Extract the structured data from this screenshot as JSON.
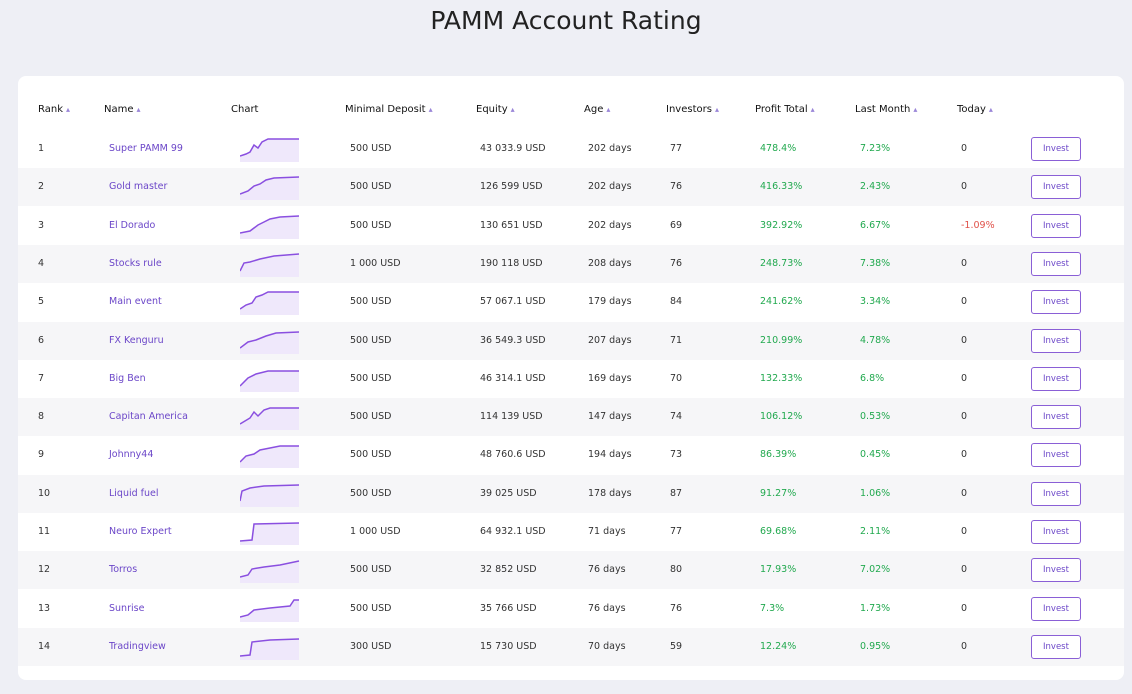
{
  "header": {
    "title": "PAMM Account Rating"
  },
  "table": {
    "columns": [
      "Rank",
      "Name",
      "Chart",
      "Minimal Deposit",
      "Equity",
      "Age",
      "Investors",
      "Profit Total",
      "Last Month",
      "Today"
    ],
    "action_label": "Invest",
    "rows": [
      [
        "1",
        "Super PAMM 99",
        "500 USD",
        "43 033.9 USD",
        "202 days",
        "77",
        "478.4%",
        "7.23%",
        "0"
      ],
      [
        "2",
        "Gold master",
        "500 USD",
        "126 599 USD",
        "202 days",
        "76",
        "416.33%",
        "2.43%",
        "0"
      ],
      [
        "3",
        "El Dorado",
        "500 USD",
        "130 651 USD",
        "202 days",
        "69",
        "392.92%",
        "6.67%",
        "-1.09%"
      ],
      [
        "4",
        "Stocks rule",
        "1 000 USD",
        "190 118 USD",
        "208 days",
        "76",
        "248.73%",
        "7.38%",
        "0"
      ],
      [
        "5",
        "Main event",
        "500 USD",
        "57 067.1 USD",
        "179 days",
        "84",
        "241.62%",
        "3.34%",
        "0"
      ],
      [
        "6",
        "FX Kenguru",
        "500 USD",
        "36 549.3 USD",
        "207 days",
        "71",
        "210.99%",
        "4.78%",
        "0"
      ],
      [
        "7",
        "Big Ben",
        "500 USD",
        "46 314.1 USD",
        "169 days",
        "70",
        "132.33%",
        "6.8%",
        "0"
      ],
      [
        "8",
        "Capitan America",
        "500 USD",
        "114 139 USD",
        "147 days",
        "74",
        "106.12%",
        "0.53%",
        "0"
      ],
      [
        "9",
        "Johnny44",
        "500 USD",
        "48 760.6 USD",
        "194 days",
        "73",
        "86.39%",
        "0.45%",
        "0"
      ],
      [
        "10",
        "Liquid fuel",
        "500 USD",
        "39 025 USD",
        "178 days",
        "87",
        "91.27%",
        "1.06%",
        "0"
      ],
      [
        "11",
        "Neuro Expert",
        "1 000 USD",
        "64 932.1 USD",
        "71 days",
        "77",
        "69.68%",
        "2.11%",
        "0"
      ],
      [
        "12",
        "Torros",
        "500 USD",
        "32 852 USD",
        "76 days",
        "80",
        "17.93%",
        "7.02%",
        "0"
      ],
      [
        "13",
        "Sunrise",
        "500 USD",
        "35 766 USD",
        "76 days",
        "76",
        "7.3%",
        "1.73%",
        "0"
      ],
      [
        "14",
        "Tradingview",
        "300 USD",
        "15 730 USD",
        "70 days",
        "59",
        "12.24%",
        "0.95%",
        "0"
      ]
    ]
  }
}
